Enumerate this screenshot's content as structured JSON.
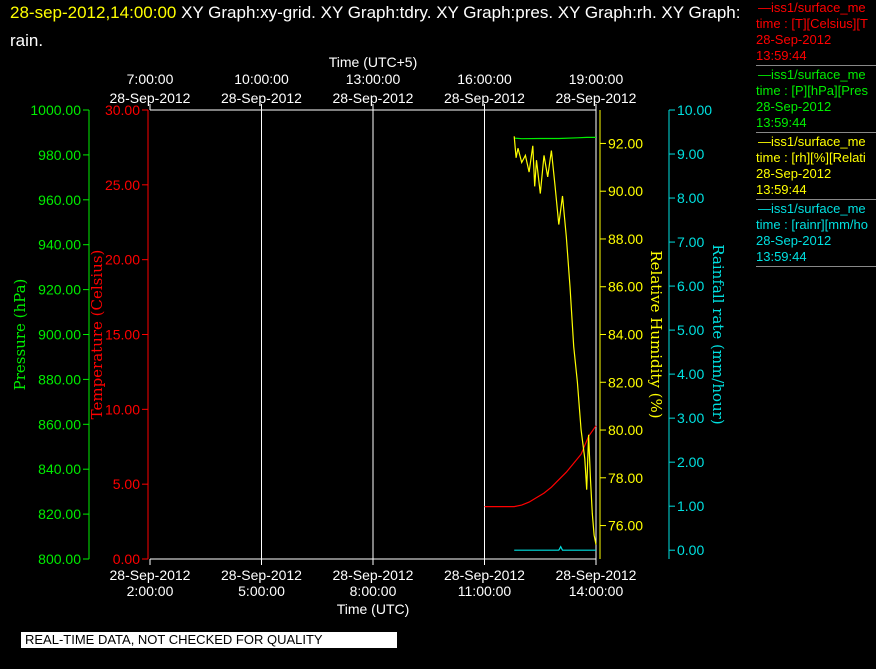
{
  "header": {
    "timestamp": "28-sep-2012,14:00:00",
    "rest": " XY Graph:xy-grid.  XY Graph:tdry.  XY Graph:pres.  XY Graph:rh.  XY Graph:",
    "rest_line2": "rain."
  },
  "qc_notice": "REAL-TIME DATA, NOT CHECKED FOR QUALITY",
  "colors": {
    "temperature": "#ff0000",
    "pressure": "#00ee00",
    "rh": "#ffff00",
    "rain": "#00e0e0",
    "timestamp": "#ffff00"
  },
  "legend": [
    {
      "line1": "—iss1/surface_me",
      "line2": "time : [T][Celsius][T",
      "date": "28-Sep-2012",
      "time": "13:59:44",
      "color": "#ff0000"
    },
    {
      "line1": "—iss1/surface_me",
      "line2": "time : [P][hPa][Pres",
      "date": "28-Sep-2012",
      "time": "13:59:44",
      "color": "#00ee00"
    },
    {
      "line1": "—iss1/surface_me",
      "line2": "time : [rh][%][Relati",
      "date": "28-Sep-2012",
      "time": "13:59:44",
      "color": "#ffff00"
    },
    {
      "line1": "—iss1/surface_me",
      "line2": "time : [rainr][mm/ho",
      "date": "28-Sep-2012",
      "time": "13:59:44",
      "color": "#00e0e0"
    }
  ],
  "chart_data": {
    "type": "line",
    "xlabel_top": "Time (UTC+5)",
    "xlabel_bottom": "Time (UTC)",
    "x_range_hours_utc": [
      2,
      14
    ],
    "x_ticks_bottom": [
      {
        "date": "28-Sep-2012",
        "time": "2:00:00"
      },
      {
        "date": "28-Sep-2012",
        "time": "5:00:00"
      },
      {
        "date": "28-Sep-2012",
        "time": "8:00:00"
      },
      {
        "date": "28-Sep-2012",
        "time": "11:00:00"
      },
      {
        "date": "28-Sep-2012",
        "time": "14:00:00"
      }
    ],
    "x_ticks_top": [
      {
        "time": "7:00:00",
        "date": "28-Sep-2012"
      },
      {
        "time": "10:00:00",
        "date": "28-Sep-2012"
      },
      {
        "time": "13:00:00",
        "date": "28-Sep-2012"
      },
      {
        "time": "16:00:00",
        "date": "28-Sep-2012"
      },
      {
        "time": "19:00:00",
        "date": "28-Sep-2012"
      }
    ],
    "grid": "vertical",
    "axes": {
      "pressure": {
        "label": "Pressure (hPa)",
        "range": [
          800,
          1000
        ],
        "ticks": [
          "800.00",
          "820.00",
          "840.00",
          "860.00",
          "880.00",
          "900.00",
          "920.00",
          "940.00",
          "960.00",
          "980.00",
          "1000.00"
        ]
      },
      "temperature": {
        "label": "Temperature (Celsius)",
        "range": [
          0,
          30
        ],
        "ticks": [
          "0.00",
          "5.00",
          "10.00",
          "15.00",
          "20.00",
          "25.00",
          "30.00"
        ]
      },
      "rh": {
        "label": "Relative Humidity (%)",
        "range": [
          74.6,
          93.4
        ],
        "ticks": [
          "76.00",
          "78.00",
          "80.00",
          "82.00",
          "84.00",
          "86.00",
          "88.00",
          "90.00",
          "92.00"
        ]
      },
      "rain": {
        "label": "Rainfall rate (mm/hour)",
        "range": [
          -0.2,
          10
        ],
        "ticks": [
          "0.00",
          "1.00",
          "2.00",
          "3.00",
          "4.00",
          "5.00",
          "6.00",
          "7.00",
          "8.00",
          "9.00",
          "10.00"
        ]
      }
    },
    "series": [
      {
        "name": "iss1/surface_me",
        "key": "temperature",
        "x": [
          11.0,
          11.5,
          11.8,
          12.0,
          12.2,
          12.4,
          12.6,
          12.8,
          13.0,
          13.2,
          13.4,
          13.6,
          13.8,
          14.0
        ],
        "y": [
          3.5,
          3.5,
          3.5,
          3.6,
          3.8,
          4.1,
          4.4,
          4.8,
          5.3,
          5.8,
          6.4,
          7.0,
          8.2,
          8.9
        ]
      },
      {
        "name": "iss1/surface_me",
        "key": "pressure",
        "x": [
          11.8,
          12.0,
          12.5,
          13.0,
          13.5,
          13.75,
          14.0
        ],
        "y": [
          987.5,
          987.2,
          987.3,
          987.3,
          987.6,
          987.8,
          987.8
        ]
      },
      {
        "name": "iss1/surface_me",
        "key": "rh",
        "x": [
          11.8,
          11.85,
          11.9,
          12.0,
          12.1,
          12.2,
          12.3,
          12.35,
          12.4,
          12.5,
          12.6,
          12.7,
          12.8,
          12.9,
          13.0,
          13.1,
          13.2,
          13.3,
          13.4,
          13.5,
          13.6,
          13.7,
          13.75,
          13.8,
          13.85,
          13.9,
          13.95,
          14.0
        ],
        "y": [
          92.3,
          91.4,
          91.8,
          91.2,
          91.5,
          90.8,
          91.9,
          90.2,
          91.3,
          89.9,
          91.5,
          90.6,
          91.7,
          90.2,
          88.6,
          89.8,
          88.1,
          86.0,
          83.5,
          82.0,
          80.0,
          78.8,
          77.5,
          79.8,
          78.0,
          76.5,
          75.6,
          75.2
        ]
      },
      {
        "name": "iss1/surface_me",
        "key": "rain",
        "x": [
          11.8,
          12.5,
          13.0,
          13.05,
          13.1,
          13.5,
          14.0
        ],
        "y": [
          0.0,
          0.0,
          0.0,
          0.08,
          0.0,
          0.0,
          0.0
        ]
      }
    ]
  }
}
